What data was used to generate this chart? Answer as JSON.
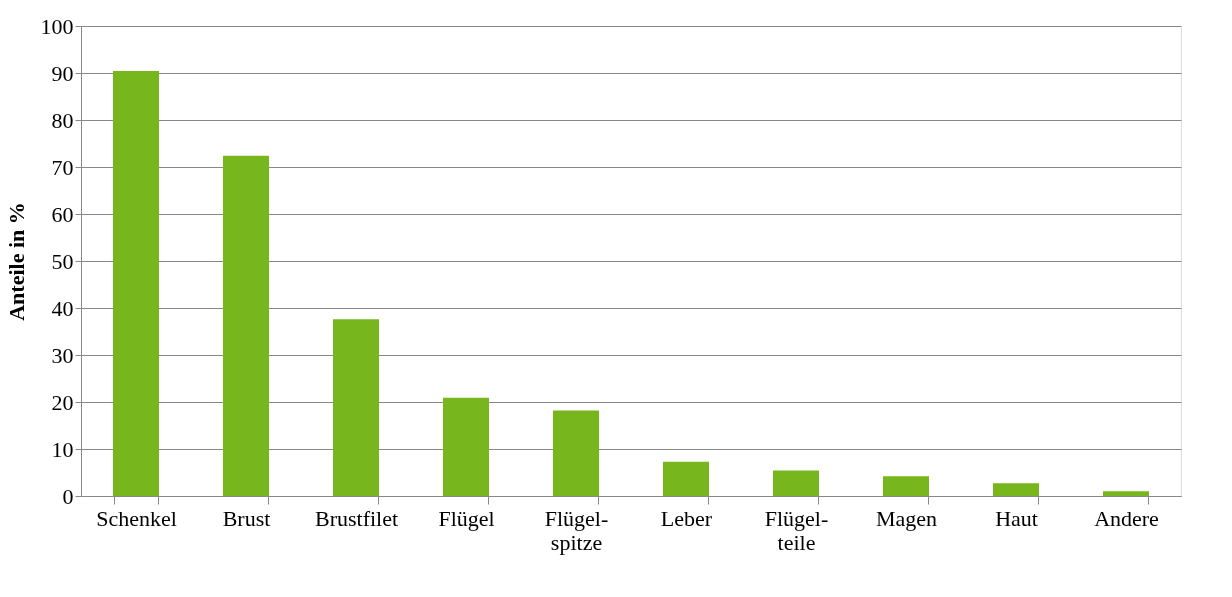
{
  "chart_data": {
    "type": "bar",
    "ylabel": "Anteile in %",
    "categories": [
      "Schenkel",
      "Brust",
      "Brustfilet",
      "Flügel",
      "Flügel-\nspitze",
      "Leber",
      "Flügel-\nteile",
      "Magen",
      "Haut",
      "Andere"
    ],
    "values": [
      90.4,
      72.4,
      37.6,
      20.9,
      18.2,
      7.3,
      5.4,
      4.2,
      2.7,
      1.0
    ],
    "color": "#77b71d",
    "ylim": [
      0,
      100
    ],
    "yticks": [
      0,
      10,
      20,
      30,
      40,
      50,
      60,
      70,
      80,
      90,
      100
    ],
    "grid": "y"
  }
}
